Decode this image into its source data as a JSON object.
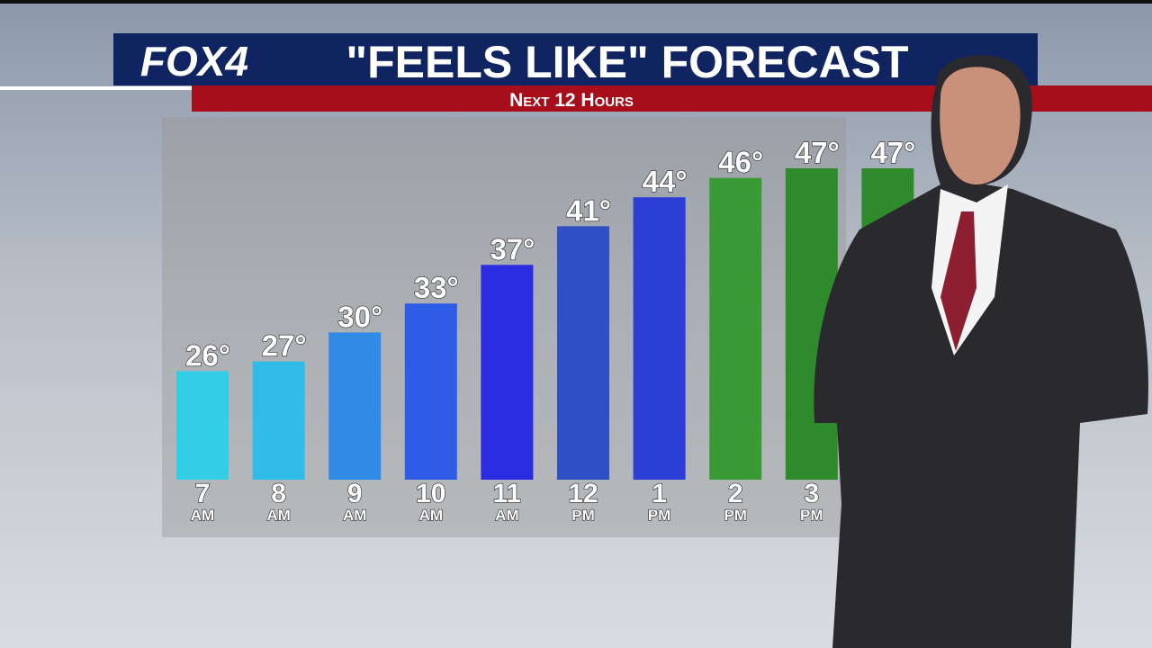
{
  "chart_data": {
    "type": "bar",
    "brand": "FOX4",
    "title": "\"FEELS LIKE\" FORECAST",
    "subtitle": "Next 12 Hours",
    "categories": [
      "7",
      "8",
      "9",
      "10",
      "11",
      "12",
      "1",
      "2",
      "3",
      null
    ],
    "periods": [
      "AM",
      "AM",
      "AM",
      "AM",
      "AM",
      "PM",
      "PM",
      "PM",
      "PM",
      null
    ],
    "values": [
      26,
      27,
      30,
      33,
      37,
      41,
      44,
      46,
      47,
      47
    ],
    "value_labels": [
      "26°",
      "27°",
      "30°",
      "33°",
      "37°",
      "41°",
      "44°",
      "46°",
      "47°",
      "47°"
    ],
    "colors": [
      "#33cde6",
      "#30bce6",
      "#2f8be6",
      "#2f5ce6",
      "#2b2ce0",
      "#2f4fc4",
      "#2b3ed6",
      "#3a9a35",
      "#2f8a2c",
      "#2f8a2c"
    ],
    "ylim": [
      21,
      47
    ]
  }
}
